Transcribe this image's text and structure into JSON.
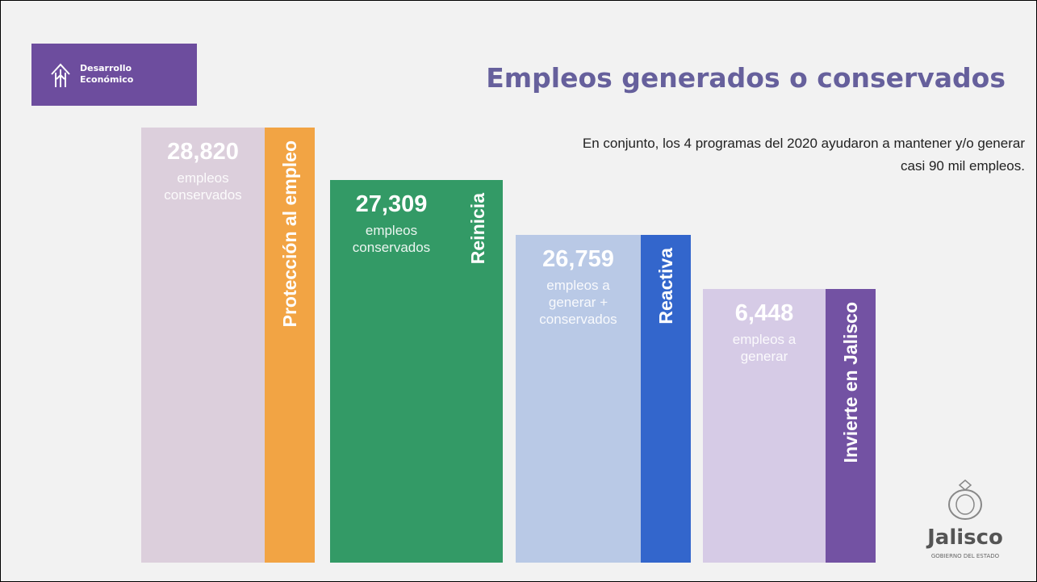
{
  "header": {
    "logo_lines": [
      "Desarrollo",
      "Económico"
    ],
    "title": "Empleos generados o conservados",
    "subtitle_lines": [
      "En conjunto, los 4 programas del 2020 ayudaron a mantener y/o generar",
      "casi 90 mil empleos."
    ]
  },
  "programs": [
    {
      "name": "Protección al empleo",
      "number": "28,820",
      "description": [
        "empleos",
        "conservados"
      ],
      "color": "#dccfdc",
      "strip_color": "#f2a444",
      "text_color": "#ffffff"
    },
    {
      "name": "Reinicia",
      "number": "27,309",
      "description": [
        "empleos",
        "conservados"
      ],
      "color": "#339a66",
      "strip_color": "#339a66",
      "text_color": "#ffffff"
    },
    {
      "name": "Reactiva",
      "number": "26,759",
      "description": [
        "empleos a",
        "generar +",
        "conservados"
      ],
      "color": "#b9c9e6",
      "strip_color": "#3366cc",
      "text_color": "#ffffff"
    },
    {
      "name": "Invierte en Jalisco",
      "number": "6,448",
      "description": [
        "empleos a",
        "generar"
      ],
      "color": "#d6cbe6",
      "strip_color": "#7352a3",
      "text_color": "#ffffff"
    }
  ],
  "footer": {
    "brand": "Jalisco",
    "tagline": "GOBIERNO DEL ESTADO"
  }
}
